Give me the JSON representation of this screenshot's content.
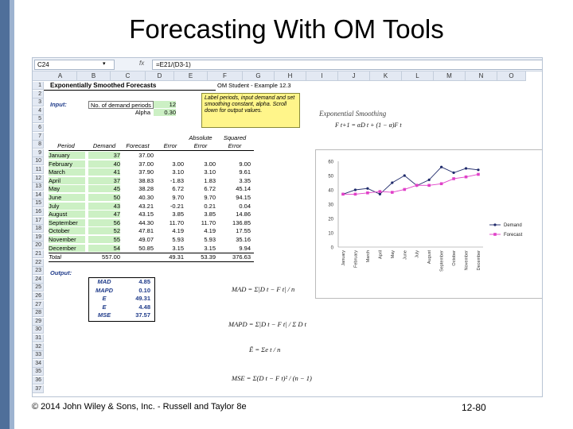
{
  "slide": {
    "title": "Forecasting With OM Tools",
    "footer": "© 2014 John Wiley & Sons, Inc. - Russell and Taylor 8e",
    "page_number": "12-80"
  },
  "spreadsheet": {
    "name_box": "C24",
    "fx_label": "fx",
    "formula": "=E21/(D3-1)",
    "columns": [
      "A",
      "B",
      "C",
      "D",
      "E",
      "F",
      "G",
      "H",
      "I",
      "J",
      "K",
      "L",
      "M",
      "N",
      "O"
    ],
    "rows": [
      "1",
      "2",
      "3",
      "4",
      "5",
      "6",
      "7",
      "8",
      "9",
      "10",
      "11",
      "12",
      "13",
      "14",
      "15",
      "16",
      "17",
      "18",
      "19",
      "20",
      "21",
      "22",
      "23",
      "24",
      "25",
      "26",
      "27",
      "28",
      "29",
      "30",
      "31",
      "32",
      "33",
      "34",
      "35",
      "36",
      "37"
    ],
    "title": "Exponentially Smoothed Forecasts",
    "om_student": "OM Student - Example 12.3",
    "input_label": "Input:",
    "demand_periods_label": "No. of demand periods",
    "demand_periods_value": "12",
    "alpha_label": "Alpha",
    "alpha_value": "0.30",
    "note": "Label periods, input demand and set smoothing constant, alpha. Scroll down for output values.",
    "headers": {
      "period": "Period",
      "demand": "Demand",
      "forecast": "Forecast",
      "error": "Error",
      "absolute": "Absolute",
      "abs_error": "Error",
      "squared": "Squared",
      "sq_error": "Error"
    },
    "table": [
      {
        "period": "January",
        "demand": "37",
        "forecast": "37.00",
        "error": "",
        "abs": "",
        "sq": ""
      },
      {
        "period": "February",
        "demand": "40",
        "forecast": "37.00",
        "error": "3.00",
        "abs": "3.00",
        "sq": "9.00"
      },
      {
        "period": "March",
        "demand": "41",
        "forecast": "37.90",
        "error": "3.10",
        "abs": "3.10",
        "sq": "9.61"
      },
      {
        "period": "April",
        "demand": "37",
        "forecast": "38.83",
        "error": "-1.83",
        "abs": "1.83",
        "sq": "3.35"
      },
      {
        "period": "May",
        "demand": "45",
        "forecast": "38.28",
        "error": "6.72",
        "abs": "6.72",
        "sq": "45.14"
      },
      {
        "period": "June",
        "demand": "50",
        "forecast": "40.30",
        "error": "9.70",
        "abs": "9.70",
        "sq": "94.15"
      },
      {
        "period": "July",
        "demand": "43",
        "forecast": "43.21",
        "error": "-0.21",
        "abs": "0.21",
        "sq": "0.04"
      },
      {
        "period": "August",
        "demand": "47",
        "forecast": "43.15",
        "error": "3.85",
        "abs": "3.85",
        "sq": "14.86"
      },
      {
        "period": "September",
        "demand": "56",
        "forecast": "44.30",
        "error": "11.70",
        "abs": "11.70",
        "sq": "136.85"
      },
      {
        "period": "October",
        "demand": "52",
        "forecast": "47.81",
        "error": "4.19",
        "abs": "4.19",
        "sq": "17.55"
      },
      {
        "period": "November",
        "demand": "55",
        "forecast": "49.07",
        "error": "5.93",
        "abs": "5.93",
        "sq": "35.16"
      },
      {
        "period": "December",
        "demand": "54",
        "forecast": "50.85",
        "error": "3.15",
        "abs": "3.15",
        "sq": "9.94"
      }
    ],
    "total": {
      "label": "Total",
      "demand": "557.00",
      "error": "49.31",
      "abs": "53.39",
      "sq": "376.63"
    },
    "output_label": "Output:",
    "outputs": [
      {
        "label": "MAD",
        "value": "4.85"
      },
      {
        "label": "MAPD",
        "value": "0.10"
      },
      {
        "label": "E",
        "value": "49.31"
      },
      {
        "label": "E",
        "value": "4.48"
      },
      {
        "label": "MSE",
        "value": "37.57"
      }
    ]
  },
  "formulas": {
    "exp_smoothing_title": "Exponential Smoothing",
    "exp_smoothing": "F t+1 = αD t + (1 − α)F t",
    "mad": "MAD = Σ|D t − F t| / n",
    "mapd": "MAPD = Σ|D t − F t| / Σ D t",
    "ebar": "Ē = Σe t / n",
    "mse": "MSE = Σ(D t − F t)² / (n − 1)"
  },
  "chart_data": {
    "type": "line",
    "categories": [
      "January",
      "February",
      "March",
      "April",
      "May",
      "June",
      "July",
      "August",
      "September",
      "October",
      "November",
      "December"
    ],
    "series": [
      {
        "name": "Demand",
        "color": "#1f2a6b",
        "values": [
          37,
          40,
          41,
          37,
          45,
          50,
          43,
          47,
          56,
          52,
          55,
          54
        ]
      },
      {
        "name": "Forecast",
        "color": "#e040c8",
        "values": [
          37.0,
          37.0,
          37.9,
          38.83,
          38.28,
          40.3,
          43.21,
          43.15,
          44.3,
          47.81,
          49.07,
          50.85
        ]
      }
    ],
    "yticks": [
      "0",
      "10",
      "20",
      "30",
      "40",
      "50",
      "60"
    ],
    "ylim": [
      0,
      60
    ],
    "grid": false,
    "legend_position": "right"
  }
}
